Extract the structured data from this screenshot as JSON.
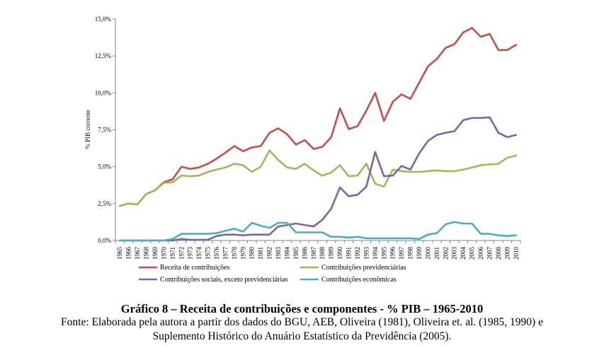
{
  "chart_data": {
    "type": "line",
    "ylabel": "% PIB corrente",
    "ylim": [
      0,
      15
    ],
    "yticks": [
      "0,0%",
      "2,5%",
      "5,0%",
      "7,5%",
      "10,0%",
      "12,5%",
      "15,0%"
    ],
    "ytick_values": [
      0,
      2.5,
      5,
      7.5,
      10,
      12.5,
      15
    ],
    "categories": [
      "1965",
      "1966",
      "1967",
      "1968",
      "1969",
      "1970",
      "1971",
      "1972",
      "1973",
      "1974",
      "1975",
      "1976",
      "1977",
      "1978",
      "1979",
      "1980",
      "1981",
      "1982",
      "1983",
      "1984",
      "1985",
      "1986",
      "1987",
      "1988",
      "1989",
      "1990",
      "1991",
      "1992",
      "1993",
      "1994",
      "1995",
      "1996",
      "1997",
      "1998",
      "1999",
      "2000",
      "2001",
      "2002",
      "2003",
      "2004",
      "2005",
      "2006",
      "2007",
      "2008",
      "2009",
      "2010"
    ],
    "grid": false,
    "legend_position": "bottom",
    "series": [
      {
        "name": "Receita de contribuições",
        "color": "#c0504d",
        "values": [
          2.35,
          2.5,
          2.45,
          3.15,
          3.4,
          3.95,
          4.15,
          5.0,
          4.85,
          4.95,
          5.2,
          5.55,
          5.95,
          6.4,
          6.05,
          6.3,
          6.4,
          7.3,
          7.6,
          7.2,
          6.5,
          6.8,
          6.2,
          6.35,
          7.0,
          8.95,
          7.55,
          7.75,
          8.8,
          10.0,
          8.1,
          9.4,
          9.9,
          9.6,
          10.7,
          11.8,
          12.3,
          13.05,
          13.3,
          14.1,
          14.4,
          13.8,
          14.0,
          12.9,
          12.9,
          13.25
        ]
      },
      {
        "name": "Contribuições previdenciárias",
        "color": "#9bbb59",
        "values": [
          2.35,
          2.5,
          2.45,
          3.15,
          3.4,
          3.9,
          3.95,
          4.4,
          4.35,
          4.4,
          4.65,
          4.8,
          4.95,
          5.2,
          5.1,
          4.65,
          5.0,
          6.1,
          5.45,
          4.95,
          4.85,
          5.2,
          4.75,
          4.4,
          4.6,
          5.1,
          4.35,
          4.4,
          5.2,
          3.85,
          3.65,
          4.8,
          4.7,
          4.65,
          4.65,
          4.7,
          4.75,
          4.7,
          4.7,
          4.8,
          4.95,
          5.1,
          5.15,
          5.2,
          5.6,
          5.75
        ]
      },
      {
        "name": "Contribuições sociais, exceto previdenciárias",
        "color": "#8064a2",
        "values": [
          0,
          0,
          0,
          0,
          0,
          0,
          0,
          0.1,
          0.05,
          0.05,
          0.05,
          0.3,
          0.4,
          0.4,
          0.35,
          0.4,
          0.4,
          0.4,
          0.95,
          1.05,
          1.15,
          1.05,
          0.95,
          1.4,
          2.15,
          3.6,
          3.0,
          3.1,
          3.65,
          6.0,
          4.35,
          4.4,
          5.05,
          4.8,
          5.9,
          6.75,
          7.15,
          7.3,
          7.4,
          8.15,
          8.3,
          8.3,
          8.35,
          7.3,
          7.0,
          7.15
        ]
      },
      {
        "name": "Contribuições econômicas",
        "color": "#4bacc6",
        "values": [
          0,
          0,
          0,
          0,
          0,
          0,
          0.1,
          0.45,
          0.45,
          0.45,
          0.45,
          0.5,
          0.65,
          0.8,
          0.6,
          1.2,
          1.0,
          0.85,
          1.2,
          1.2,
          0.55,
          0.55,
          0.55,
          0.55,
          0.25,
          0.25,
          0.2,
          0.25,
          0.15,
          0.15,
          0.15,
          0.15,
          0.15,
          0.15,
          0.1,
          0.4,
          0.5,
          1.1,
          1.25,
          1.15,
          1.15,
          0.45,
          0.45,
          0.35,
          0.3,
          0.35
        ]
      }
    ]
  },
  "caption": {
    "title": "Gráfico 8 – Receita de contribuições e componentes - % PIB – 1965-2010",
    "source_line1": "Fonte: Elaborada pela autora a partir dos dados do BGU, AEB, Oliveira (1981), Oliveira et. al. (1985, 1990) e",
    "source_line2": "Suplemento Histórico do Anuário Estatístico da Previdência (2005)."
  }
}
